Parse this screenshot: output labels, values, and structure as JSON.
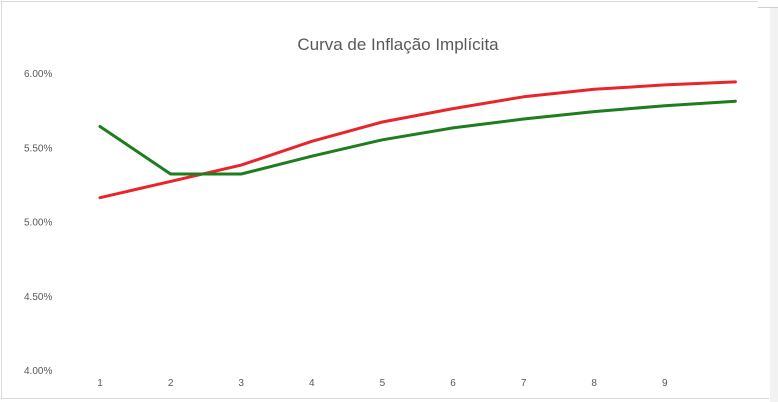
{
  "chart_data": {
    "type": "line",
    "title": "Curva de Inflação Implícita",
    "xlabel": "",
    "ylabel": "",
    "x_tick_labels": [
      "1",
      "2",
      "3",
      "4",
      "5",
      "6",
      "7",
      "8",
      "9"
    ],
    "y_tick_labels": [
      "4.00%",
      "4.50%",
      "5.00%",
      "5.50%",
      "6.00%"
    ],
    "ylim": [
      4.0,
      6.0
    ],
    "y_ticks": [
      4.0,
      4.5,
      5.0,
      5.5,
      6.0
    ],
    "x": [
      1,
      2,
      3,
      4,
      5,
      6,
      7,
      8,
      9,
      10
    ],
    "series": [
      {
        "color": "#e8252a",
        "values": [
          5.16,
          5.27,
          5.38,
          5.54,
          5.67,
          5.76,
          5.84,
          5.89,
          5.92,
          5.94
        ]
      },
      {
        "color": "#1e7d1e",
        "values": [
          5.64,
          5.32,
          5.32,
          5.44,
          5.55,
          5.63,
          5.69,
          5.74,
          5.78,
          5.81
        ]
      }
    ],
    "grid": false,
    "legend": "none"
  }
}
